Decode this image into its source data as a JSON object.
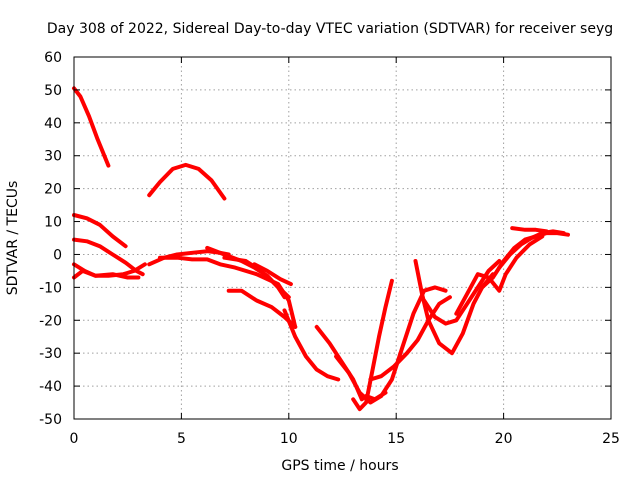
{
  "chart_data": {
    "type": "line",
    "title": "Day 308 of 2022, Sidereal Day-to-day VTEC variation (SDTVAR) for receiver seyg",
    "xlabel": "GPS time / hours",
    "ylabel": "SDTVAR / TECUs",
    "xlim": [
      0,
      25
    ],
    "ylim": [
      -50,
      60
    ],
    "xticks": [
      0,
      5,
      10,
      15,
      20,
      25
    ],
    "yticks": [
      -50,
      -40,
      -30,
      -20,
      -10,
      0,
      10,
      20,
      30,
      40,
      50,
      60
    ],
    "grid": true,
    "color": "#ff0000",
    "series": [
      {
        "name": "s1",
        "points": [
          [
            0.0,
            50.5
          ],
          [
            0.3,
            48
          ],
          [
            0.7,
            42
          ],
          [
            1.1,
            35
          ],
          [
            1.6,
            27
          ]
        ]
      },
      {
        "name": "s2",
        "points": [
          [
            3.5,
            18
          ],
          [
            4.0,
            22
          ],
          [
            4.6,
            26
          ],
          [
            5.2,
            27.2
          ],
          [
            5.8,
            26
          ],
          [
            6.4,
            22.5
          ],
          [
            7.0,
            17
          ]
        ]
      },
      {
        "name": "s3",
        "points": [
          [
            0.0,
            12
          ],
          [
            0.6,
            11
          ],
          [
            1.2,
            9
          ],
          [
            1.8,
            5.5
          ],
          [
            2.4,
            2.5
          ]
        ]
      },
      {
        "name": "s4",
        "points": [
          [
            0.0,
            4.5
          ],
          [
            0.6,
            4
          ],
          [
            1.2,
            2.5
          ],
          [
            1.8,
            0
          ],
          [
            2.4,
            -2.5
          ],
          [
            2.9,
            -5
          ],
          [
            3.2,
            -6
          ]
        ]
      },
      {
        "name": "s5",
        "points": [
          [
            0.0,
            -3
          ],
          [
            0.5,
            -5
          ],
          [
            1.0,
            -6.5
          ],
          [
            1.6,
            -6.5
          ],
          [
            2.3,
            -6
          ],
          [
            2.8,
            -5
          ],
          [
            3.3,
            -3
          ]
        ]
      },
      {
        "name": "s6",
        "points": [
          [
            0.0,
            -7
          ],
          [
            0.4,
            -5
          ],
          [
            1.0,
            -6.5
          ],
          [
            1.8,
            -6
          ],
          [
            2.5,
            -7
          ],
          [
            3.0,
            -7
          ]
        ]
      },
      {
        "name": "s7",
        "points": [
          [
            3.5,
            -3
          ],
          [
            4.2,
            -1
          ],
          [
            4.8,
            0
          ],
          [
            5.5,
            0.5
          ],
          [
            6.2,
            1
          ],
          [
            6.8,
            0.5
          ],
          [
            7.2,
            0
          ]
        ]
      },
      {
        "name": "s8",
        "points": [
          [
            4.0,
            -1
          ],
          [
            4.8,
            -1
          ],
          [
            5.5,
            -1.5
          ],
          [
            6.2,
            -1.5
          ],
          [
            6.8,
            -3
          ],
          [
            7.5,
            -4
          ],
          [
            8.5,
            -6
          ],
          [
            9.5,
            -9
          ],
          [
            10.0,
            -14
          ],
          [
            10.3,
            -22
          ]
        ]
      },
      {
        "name": "s9",
        "points": [
          [
            6.2,
            2
          ],
          [
            7.0,
            0
          ],
          [
            7.8,
            -2
          ],
          [
            8.4,
            -4
          ],
          [
            9.0,
            -6.5
          ],
          [
            9.5,
            -10
          ],
          [
            9.8,
            -13
          ]
        ]
      },
      {
        "name": "s10",
        "points": [
          [
            7.0,
            -1
          ],
          [
            8.0,
            -2
          ],
          [
            8.7,
            -5
          ],
          [
            9.2,
            -8
          ],
          [
            9.6,
            -10.5
          ],
          [
            10.0,
            -13
          ]
        ]
      },
      {
        "name": "s11",
        "points": [
          [
            7.2,
            -11
          ],
          [
            7.8,
            -11
          ],
          [
            8.5,
            -14
          ],
          [
            9.2,
            -16
          ],
          [
            9.8,
            -19
          ],
          [
            10.3,
            -22
          ]
        ]
      },
      {
        "name": "s12",
        "points": [
          [
            8.4,
            -3
          ],
          [
            9.0,
            -5
          ],
          [
            9.6,
            -7.5
          ],
          [
            10.1,
            -9
          ]
        ]
      },
      {
        "name": "s13",
        "points": [
          [
            9.8,
            -17
          ],
          [
            10.3,
            -25
          ],
          [
            10.8,
            -31
          ],
          [
            11.3,
            -35
          ],
          [
            11.8,
            -37
          ],
          [
            12.3,
            -38
          ]
        ]
      },
      {
        "name": "s14",
        "points": [
          [
            11.3,
            -22
          ],
          [
            11.9,
            -27
          ],
          [
            12.5,
            -33
          ],
          [
            13.0,
            -38
          ],
          [
            13.4,
            -44
          ],
          [
            13.6,
            -43
          ],
          [
            14.0,
            -44
          ],
          [
            14.5,
            -42
          ]
        ]
      },
      {
        "name": "s15",
        "points": [
          [
            12.2,
            -31
          ],
          [
            12.8,
            -36
          ],
          [
            13.3,
            -42
          ],
          [
            13.8,
            -45
          ],
          [
            14.3,
            -43
          ],
          [
            14.8,
            -38
          ],
          [
            15.3,
            -28
          ],
          [
            15.8,
            -18
          ],
          [
            16.3,
            -11
          ],
          [
            16.8,
            -10
          ],
          [
            17.3,
            -11
          ]
        ]
      },
      {
        "name": "s16",
        "points": [
          [
            13.0,
            -44
          ],
          [
            13.3,
            -47
          ],
          [
            13.6,
            -45
          ],
          [
            13.9,
            -35
          ],
          [
            14.2,
            -25
          ],
          [
            14.5,
            -16
          ],
          [
            14.8,
            -8
          ]
        ]
      },
      {
        "name": "s17",
        "points": [
          [
            13.8,
            -38
          ],
          [
            14.3,
            -37
          ],
          [
            14.9,
            -34
          ],
          [
            15.5,
            -30
          ],
          [
            16.0,
            -26
          ],
          [
            16.5,
            -20
          ],
          [
            17.0,
            -15
          ],
          [
            17.5,
            -13
          ]
        ]
      },
      {
        "name": "s18",
        "points": [
          [
            15.9,
            -2
          ],
          [
            16.2,
            -12
          ],
          [
            16.5,
            -20
          ],
          [
            17.0,
            -27
          ],
          [
            17.6,
            -30
          ],
          [
            18.1,
            -24
          ],
          [
            18.6,
            -15
          ],
          [
            19.0,
            -10
          ],
          [
            19.5,
            -6
          ]
        ]
      },
      {
        "name": "s19",
        "points": [
          [
            16.3,
            -14
          ],
          [
            16.8,
            -19
          ],
          [
            17.3,
            -21
          ],
          [
            17.8,
            -20
          ],
          [
            18.3,
            -15
          ],
          [
            18.8,
            -10
          ],
          [
            19.3,
            -5
          ],
          [
            19.8,
            -2
          ]
        ]
      },
      {
        "name": "s20",
        "points": [
          [
            17.8,
            -18
          ],
          [
            18.3,
            -12
          ],
          [
            18.8,
            -6
          ],
          [
            19.3,
            -7
          ],
          [
            19.8,
            -11
          ],
          [
            20.1,
            -6
          ],
          [
            20.6,
            -1
          ],
          [
            21.2,
            3
          ],
          [
            21.8,
            5.5
          ]
        ]
      },
      {
        "name": "s21",
        "points": [
          [
            19.0,
            -10
          ],
          [
            19.5,
            -7
          ],
          [
            20.0,
            -2
          ],
          [
            20.5,
            2
          ],
          [
            21.0,
            4.5
          ],
          [
            21.5,
            5.5
          ],
          [
            22.0,
            6.5
          ],
          [
            22.5,
            6.5
          ],
          [
            23.0,
            6
          ]
        ]
      },
      {
        "name": "s22",
        "points": [
          [
            19.8,
            -4
          ],
          [
            20.3,
            0
          ],
          [
            20.8,
            3
          ],
          [
            21.3,
            5
          ],
          [
            21.8,
            6.5
          ],
          [
            22.3,
            7
          ],
          [
            22.8,
            6.5
          ]
        ]
      },
      {
        "name": "s23",
        "points": [
          [
            20.4,
            8
          ],
          [
            21.0,
            7.5
          ],
          [
            21.5,
            7.5
          ],
          [
            22.0,
            7
          ]
        ]
      }
    ]
  }
}
